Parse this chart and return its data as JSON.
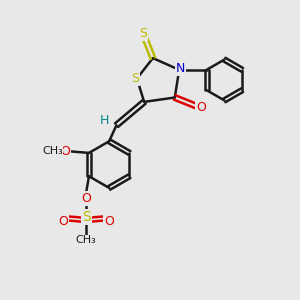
{
  "bg_color": "#e8e8e8",
  "bond_color": "#1a1a1a",
  "S_color": "#bbbb00",
  "N_color": "#0000cc",
  "O_color": "#dd0000",
  "H_color": "#008888",
  "line_width": 1.8,
  "fig_size": [
    3.0,
    3.0
  ],
  "dpi": 100,
  "xlim": [
    0,
    10
  ],
  "ylim": [
    0,
    10
  ]
}
